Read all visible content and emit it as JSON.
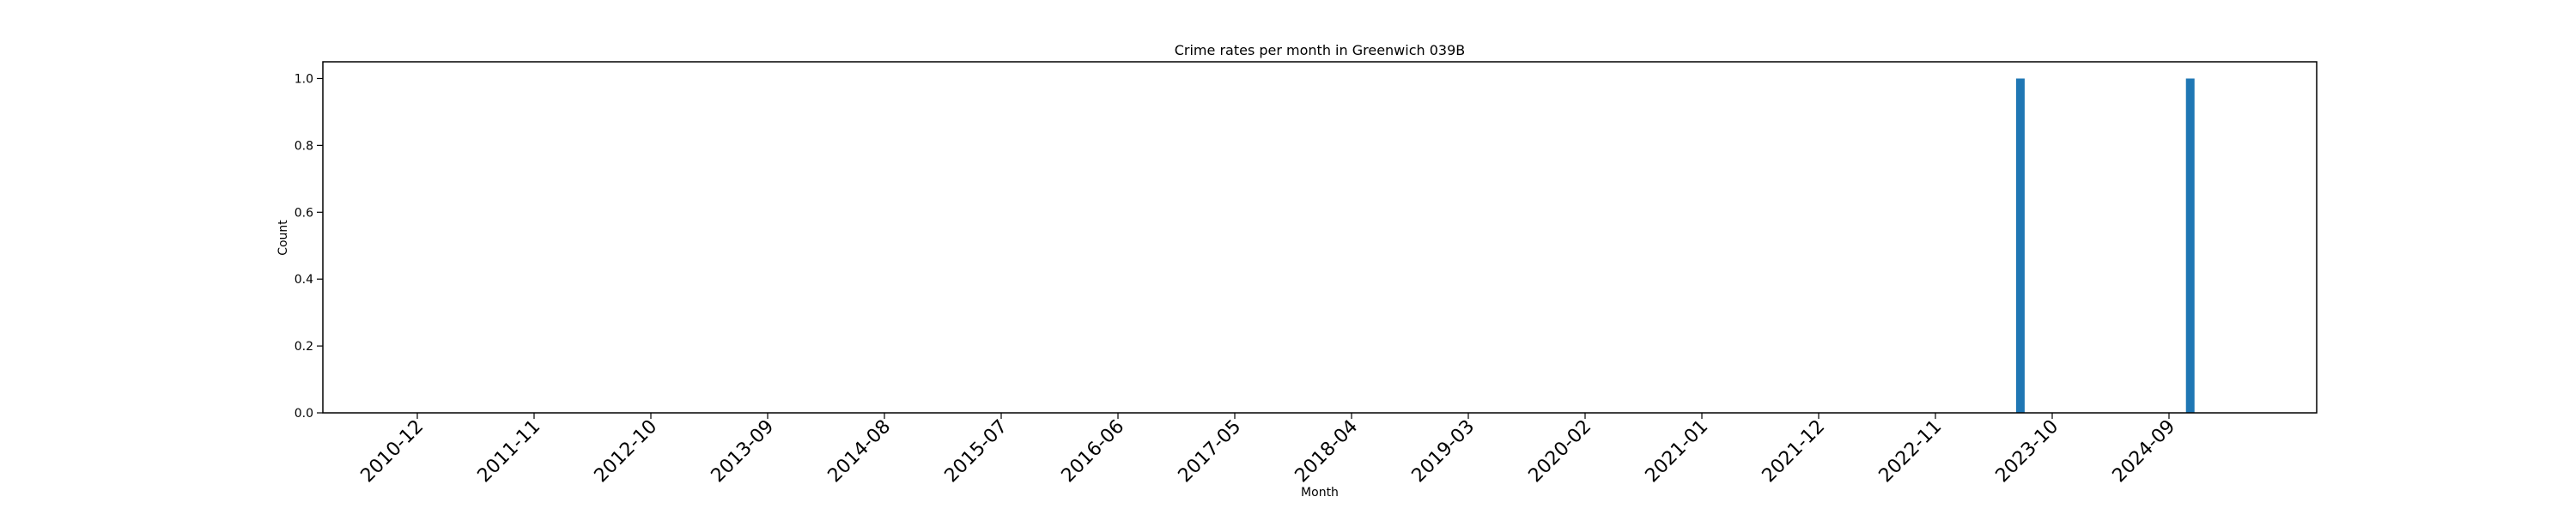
{
  "chart_data": {
    "type": "bar",
    "title": "Crime rates per month in Greenwich 039B",
    "xlabel": "Month",
    "ylabel": "Count",
    "x_tick_labels": [
      "2010-12",
      "2011-11",
      "2012-10",
      "2013-09",
      "2014-08",
      "2015-07",
      "2016-06",
      "2017-05",
      "2018-04",
      "2019-03",
      "2020-02",
      "2021-01",
      "2021-12",
      "2022-11",
      "2023-10",
      "2024-09"
    ],
    "y_tick_labels": [
      "0.0",
      "0.2",
      "0.4",
      "0.6",
      "0.8",
      "1.0"
    ],
    "ylim": [
      0,
      1.05
    ],
    "grid": false,
    "bar_color": "#1f77b4",
    "categories": [
      "2023-07",
      "2024-11"
    ],
    "values": [
      1,
      1
    ]
  }
}
